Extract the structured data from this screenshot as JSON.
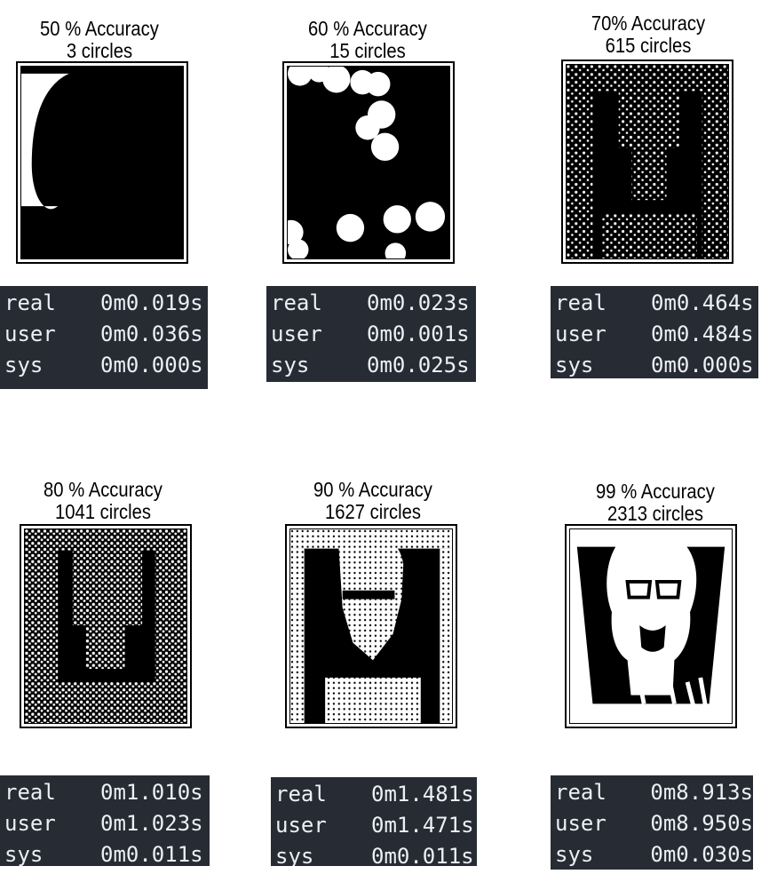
{
  "panels": [
    {
      "accuracy": "50 % Accuracy",
      "circles": "3 circles",
      "timing": [
        {
          "key": "real",
          "value": "0m0.019s"
        },
        {
          "key": "user",
          "value": "0m0.036s"
        },
        {
          "key": "sys",
          "value": "0m0.000s"
        }
      ]
    },
    {
      "accuracy": "60 % Accuracy",
      "circles": "15 circles",
      "timing": [
        {
          "key": "real",
          "value": "0m0.023s"
        },
        {
          "key": "user",
          "value": "0m0.001s"
        },
        {
          "key": "sys",
          "value": "0m0.025s"
        }
      ]
    },
    {
      "accuracy": "70% Accuracy",
      "circles": "615 circles",
      "timing": [
        {
          "key": "real",
          "value": "0m0.464s"
        },
        {
          "key": "user",
          "value": "0m0.484s"
        },
        {
          "key": "sys",
          "value": "0m0.000s"
        }
      ]
    },
    {
      "accuracy": "80 % Accuracy",
      "circles": "1041 circles",
      "timing": [
        {
          "key": "real",
          "value": "0m1.010s"
        },
        {
          "key": "user",
          "value": "0m1.023s"
        },
        {
          "key": "sys",
          "value": "0m0.011s"
        }
      ]
    },
    {
      "accuracy": "90 % Accuracy",
      "circles": "1627 circles",
      "timing": [
        {
          "key": "real",
          "value": "0m1.481s"
        },
        {
          "key": "user",
          "value": "0m1.471s"
        },
        {
          "key": "sys",
          "value": "0m0.011s"
        }
      ]
    },
    {
      "accuracy": "99 % Accuracy",
      "circles": "2313 circles",
      "timing": [
        {
          "key": "real",
          "value": "0m8.913s"
        },
        {
          "key": "user",
          "value": "0m8.950s"
        },
        {
          "key": "sys",
          "value": "0m0.030s"
        }
      ]
    }
  ],
  "colors": {
    "terminal_bg": "#272b33",
    "terminal_fg": "#eceff4"
  }
}
